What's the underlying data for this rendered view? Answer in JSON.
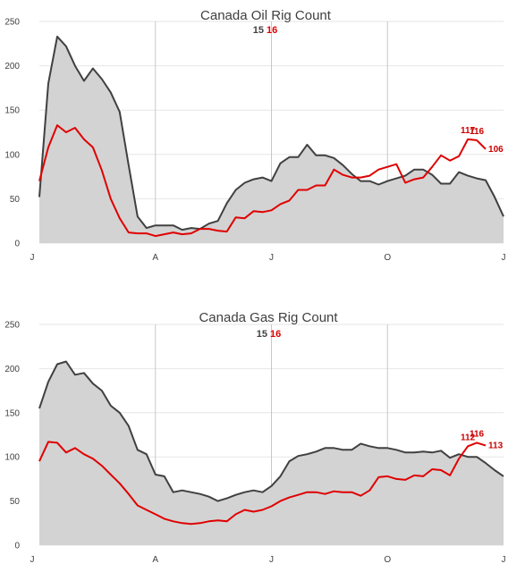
{
  "colors": {
    "series_2015": "#404040",
    "series_2016": "#e00000",
    "area": "#d3d3d3",
    "grid": "#e6e6e6",
    "month_line": "#c8c8c8"
  },
  "chart_data": [
    {
      "type": "area",
      "title": "Canada Oil Rig Count",
      "legend": {
        "placement": "top-center",
        "entries": [
          "15",
          "16"
        ]
      },
      "xlabel": "",
      "ylabel": "",
      "ylim": [
        0,
        250
      ],
      "yticks": [
        "0",
        "50",
        "100",
        "150",
        "200",
        "250"
      ],
      "xticks": [
        "J",
        "A",
        "J",
        "O",
        "J"
      ],
      "xlim": [
        0,
        52
      ],
      "grid": true,
      "series": [
        {
          "name": "15",
          "style": "area",
          "x": [
            0,
            1,
            2,
            3,
            4,
            5,
            6,
            7,
            8,
            9,
            10,
            11,
            12,
            13,
            14,
            15,
            16,
            17,
            18,
            19,
            20,
            21,
            22,
            23,
            24,
            25,
            26,
            27,
            28,
            29,
            30,
            31,
            32,
            33,
            34,
            35,
            36,
            37,
            38,
            39,
            40,
            41,
            42,
            43,
            44,
            45,
            46,
            47,
            48,
            49,
            50,
            51,
            52
          ],
          "values": [
            52,
            180,
            233,
            222,
            200,
            183,
            197,
            185,
            170,
            148,
            88,
            30,
            17,
            20,
            20,
            20,
            15,
            17,
            16,
            22,
            25,
            45,
            60,
            68,
            72,
            74,
            70,
            90,
            97,
            97,
            111,
            99,
            99,
            96,
            88,
            78,
            70,
            70,
            66,
            70,
            73,
            76,
            83,
            83,
            77,
            67,
            67,
            80,
            76,
            73,
            71,
            52,
            30
          ]
        },
        {
          "name": "16",
          "style": "line",
          "x": [
            0,
            1,
            2,
            3,
            4,
            5,
            6,
            7,
            8,
            9,
            10,
            11,
            12,
            13,
            14,
            15,
            16,
            17,
            18,
            19,
            20,
            21,
            22,
            23,
            24,
            25,
            26,
            27,
            28,
            29,
            30,
            31,
            32,
            33,
            34,
            35,
            36,
            37,
            38,
            39,
            40,
            41,
            42,
            43,
            44,
            45,
            46,
            47,
            48,
            49,
            50
          ],
          "values": [
            70,
            108,
            133,
            125,
            130,
            117,
            108,
            82,
            50,
            28,
            12,
            11,
            11,
            8,
            10,
            12,
            10,
            11,
            16,
            16,
            14,
            13,
            29,
            28,
            36,
            35,
            37,
            44,
            48,
            60,
            60,
            65,
            65,
            83,
            77,
            74,
            74,
            76,
            83,
            86,
            89,
            68,
            72,
            74,
            86,
            99,
            93,
            98,
            117,
            116,
            106
          ]
        }
      ],
      "annotations": [
        {
          "x": 48,
          "value": "117"
        },
        {
          "x": 49,
          "value": "116"
        },
        {
          "x": 50,
          "value": "106"
        }
      ]
    },
    {
      "type": "area",
      "title": "Canada Gas Rig Count",
      "legend": {
        "placement": "top-center",
        "entries": [
          "15",
          "16"
        ]
      },
      "xlabel": "",
      "ylabel": "",
      "ylim": [
        0,
        250
      ],
      "yticks": [
        "0",
        "50",
        "100",
        "150",
        "200",
        "250"
      ],
      "xticks": [
        "J",
        "A",
        "J",
        "O",
        "J"
      ],
      "xlim": [
        0,
        52
      ],
      "grid": true,
      "series": [
        {
          "name": "15",
          "style": "area",
          "x": [
            0,
            1,
            2,
            3,
            4,
            5,
            6,
            7,
            8,
            9,
            10,
            11,
            12,
            13,
            14,
            15,
            16,
            17,
            18,
            19,
            20,
            21,
            22,
            23,
            24,
            25,
            26,
            27,
            28,
            29,
            30,
            31,
            32,
            33,
            34,
            35,
            36,
            37,
            38,
            39,
            40,
            41,
            42,
            43,
            44,
            45,
            46,
            47,
            48,
            49,
            50,
            51,
            52
          ],
          "values": [
            155,
            185,
            205,
            208,
            193,
            195,
            183,
            175,
            158,
            150,
            135,
            108,
            103,
            80,
            78,
            60,
            62,
            60,
            58,
            55,
            50,
            53,
            57,
            60,
            62,
            60,
            67,
            78,
            95,
            101,
            103,
            106,
            110,
            110,
            108,
            108,
            115,
            112,
            110,
            110,
            108,
            105,
            105,
            106,
            105,
            107,
            99,
            103,
            100,
            100,
            93,
            85,
            78
          ]
        },
        {
          "name": "16",
          "style": "line",
          "x": [
            0,
            1,
            2,
            3,
            4,
            5,
            6,
            7,
            8,
            9,
            10,
            11,
            12,
            13,
            14,
            15,
            16,
            17,
            18,
            19,
            20,
            21,
            22,
            23,
            24,
            25,
            26,
            27,
            28,
            29,
            30,
            31,
            32,
            33,
            34,
            35,
            36,
            37,
            38,
            39,
            40,
            41,
            42,
            43,
            44,
            45,
            46,
            47,
            48,
            49,
            50
          ],
          "values": [
            95,
            117,
            116,
            105,
            110,
            103,
            98,
            90,
            80,
            70,
            58,
            45,
            40,
            35,
            30,
            27,
            25,
            24,
            25,
            27,
            28,
            27,
            35,
            40,
            38,
            40,
            44,
            50,
            54,
            57,
            60,
            60,
            58,
            61,
            60,
            60,
            56,
            62,
            77,
            78,
            75,
            74,
            79,
            78,
            86,
            85,
            79,
            98,
            112,
            116,
            113
          ]
        }
      ],
      "annotations": [
        {
          "x": 48,
          "value": "112"
        },
        {
          "x": 49,
          "value": "116"
        },
        {
          "x": 50,
          "value": "113"
        }
      ]
    }
  ]
}
